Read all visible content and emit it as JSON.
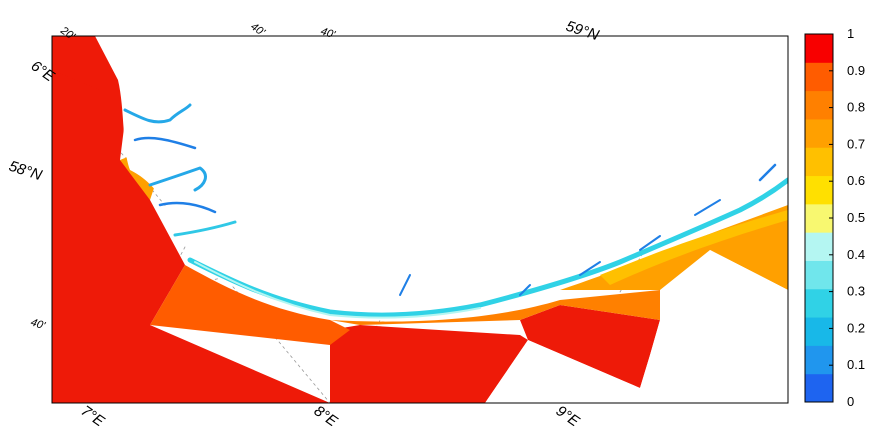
{
  "map": {
    "lat_labels": [
      {
        "id": "lat-58-40",
        "text": "40'"
      },
      {
        "id": "lat-58",
        "text": "58°N"
      },
      {
        "id": "lat-57-40",
        "text": "40'"
      },
      {
        "id": "lat-59",
        "text": "59°N"
      }
    ],
    "lon_labels": [
      {
        "id": "lon-6-20",
        "text": "20'"
      },
      {
        "id": "lon-6",
        "text": "6°E"
      },
      {
        "id": "lon-6-40",
        "text": "40'"
      },
      {
        "id": "lon-7",
        "text": "7°E"
      },
      {
        "id": "lon-8",
        "text": "8°E"
      },
      {
        "id": "lon-9",
        "text": "9°E"
      }
    ]
  },
  "colorbar": {
    "ticks": [
      "1",
      "0.9",
      "0.8",
      "0.7",
      "0.6",
      "0.5",
      "0.4",
      "0.3",
      "0.2",
      "0.1",
      "0"
    ],
    "colors": [
      "#1e64f0",
      "#2096ee",
      "#18b8e8",
      "#30d2e6",
      "#70e6ec",
      "#b4f6f2",
      "#f8f870",
      "#ffe000",
      "#ffc000",
      "#ffa000",
      "#ff8000",
      "#ff5c00",
      "#f80000"
    ]
  }
}
